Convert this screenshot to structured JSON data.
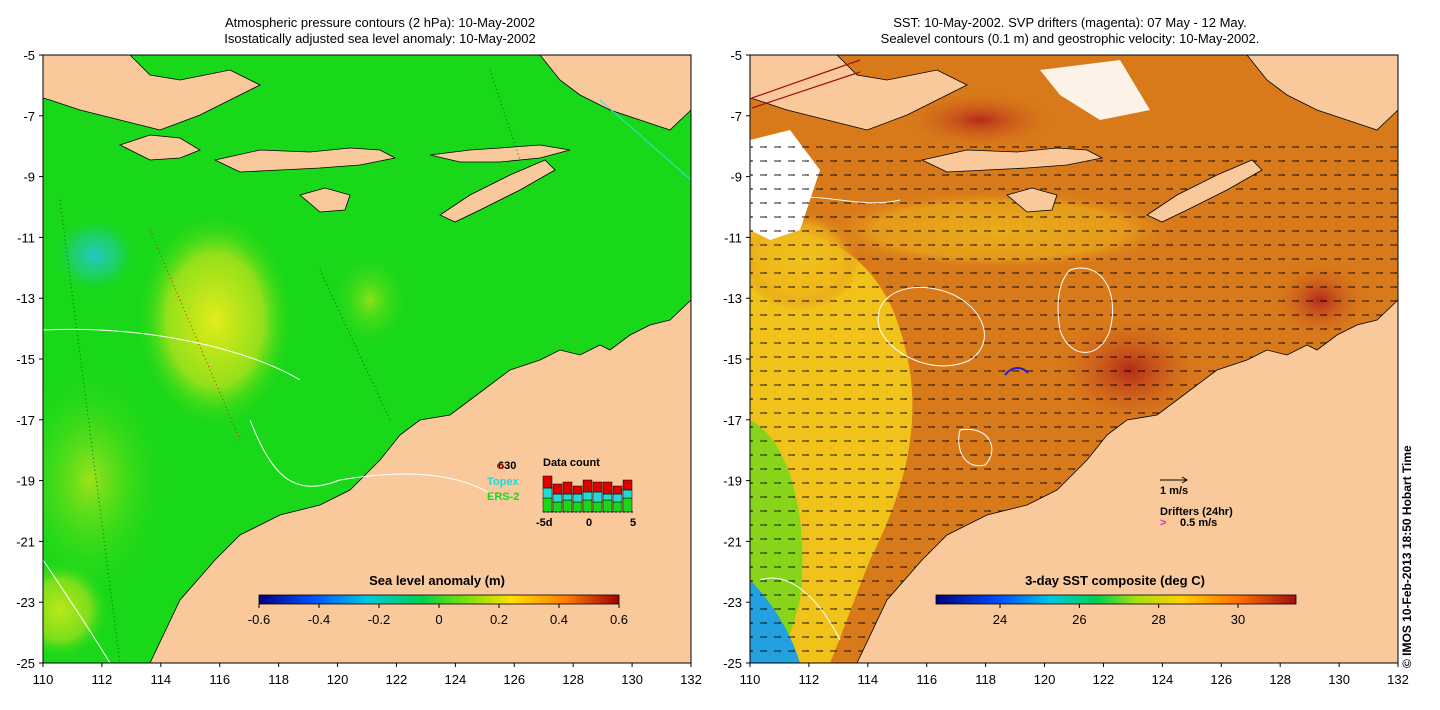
{
  "left_panel": {
    "title_line1": "Atmospheric pressure contours (2 hPa): 10-May-2002",
    "title_line2": "Isostatically adjusted sea level anomaly: 10-May-2002",
    "x_ticks": [
      "110",
      "112",
      "114",
      "116",
      "118",
      "120",
      "122",
      "124",
      "126",
      "128",
      "130",
      "132"
    ],
    "y_ticks": [
      "-5",
      "-7",
      "-9",
      "-11",
      "-13",
      "-15",
      "-17",
      "-19",
      "-21",
      "-23",
      "-25"
    ],
    "colorbar": {
      "title": "Sea level anomaly (m)",
      "ticks": [
        "-0.6",
        "-0.4",
        "-0.2",
        "0",
        "0.2",
        "0.4",
        "0.6"
      ]
    },
    "data_count": {
      "title": "Data count",
      "total": "630",
      "missions": [
        "Topex",
        "ERS-2"
      ],
      "axis_labels": [
        "-5d",
        "0",
        "5"
      ]
    }
  },
  "right_panel": {
    "title_line1": "SST: 10-May-2002. SVP drifters (magenta): 07 May - 12 May.",
    "title_line2": "Sealevel contours (0.1 m) and geostrophic velocity: 10-May-2002.",
    "x_ticks": [
      "110",
      "112",
      "114",
      "116",
      "118",
      "120",
      "122",
      "124",
      "126",
      "128",
      "130",
      "132"
    ],
    "y_ticks": [
      "-5",
      "-7",
      "-9",
      "-11",
      "-13",
      "-15",
      "-17",
      "-19",
      "-21",
      "-23",
      "-25"
    ],
    "colorbar": {
      "title": "3-day SST composite (deg C)",
      "ticks": [
        "24",
        "26",
        "28",
        "30"
      ]
    },
    "velocity_legend": "1 m/s",
    "drifters_legend": "Drifters (24hr)",
    "drifters_speed": "0.5 m/s"
  },
  "copyright": "© IMOS 10-Feb-2013 18:50 Hobart Time",
  "colors": {
    "land": "#f9c99c",
    "sla_background": "#19d819",
    "sst_background": "#d97a1a"
  }
}
